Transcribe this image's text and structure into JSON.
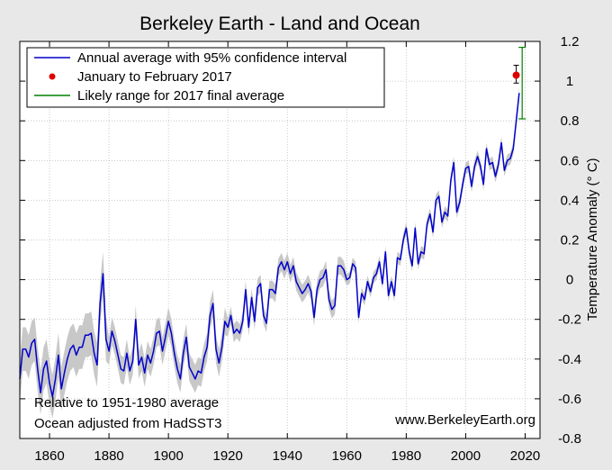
{
  "chart_data": {
    "type": "line",
    "title": "Berkeley Earth - Land and Ocean",
    "xlabel": "",
    "ylabel": "Temperature Anomaly (° C)",
    "xlim": [
      1850,
      2025
    ],
    "ylim": [
      -0.8,
      1.2
    ],
    "x_ticks": [
      1860,
      1880,
      1900,
      1920,
      1940,
      1960,
      1980,
      2000,
      2020
    ],
    "y_ticks": [
      -0.8,
      -0.6,
      -0.4,
      -0.2,
      0,
      0.2,
      0.4,
      0.6,
      0.8,
      1.0,
      1.2
    ],
    "y_tick_labels": [
      "-0.8",
      "-0.6",
      "-0.4",
      "-0.2",
      "0",
      "0.2",
      "0.4",
      "0.6",
      "0.8",
      "1",
      "1.2"
    ],
    "grid": true,
    "legend_position": "top-left",
    "legend": [
      {
        "label": "Annual average with 95% confidence interval",
        "color": "#0000cc",
        "marker": "line"
      },
      {
        "label": "January to February 2017",
        "color": "#dd0000",
        "marker": "dot"
      },
      {
        "label": "Likely range for 2017 final average",
        "color": "#008000",
        "marker": "line"
      }
    ],
    "annotations": [
      "Relative to 1951-1980 average",
      "Ocean adjusted from HadSST3"
    ],
    "source_text": "www.BerkeleyEarth.org",
    "series": [
      {
        "name": "Annual average",
        "color": "#0000cc",
        "years_start": 1850,
        "values": [
          -0.5,
          -0.35,
          -0.35,
          -0.39,
          -0.32,
          -0.3,
          -0.45,
          -0.57,
          -0.45,
          -0.41,
          -0.52,
          -0.59,
          -0.5,
          -0.38,
          -0.55,
          -0.47,
          -0.4,
          -0.35,
          -0.33,
          -0.38,
          -0.34,
          -0.34,
          -0.28,
          -0.28,
          -0.27,
          -0.37,
          -0.43,
          -0.12,
          0.03,
          -0.3,
          -0.36,
          -0.26,
          -0.31,
          -0.38,
          -0.45,
          -0.46,
          -0.37,
          -0.46,
          -0.41,
          -0.2,
          -0.43,
          -0.39,
          -0.47,
          -0.38,
          -0.42,
          -0.36,
          -0.27,
          -0.26,
          -0.36,
          -0.29,
          -0.21,
          -0.27,
          -0.37,
          -0.45,
          -0.5,
          -0.37,
          -0.29,
          -0.44,
          -0.47,
          -0.5,
          -0.46,
          -0.47,
          -0.39,
          -0.34,
          -0.18,
          -0.12,
          -0.35,
          -0.42,
          -0.34,
          -0.21,
          -0.24,
          -0.18,
          -0.27,
          -0.25,
          -0.27,
          -0.21,
          -0.05,
          -0.24,
          -0.09,
          -0.21,
          -0.04,
          -0.02,
          -0.18,
          -0.22,
          -0.05,
          -0.05,
          -0.07,
          0.06,
          0.09,
          0.05,
          0.09,
          0.03,
          0.07,
          -0.01,
          -0.04,
          -0.07,
          -0.05,
          -0.02,
          -0.06,
          -0.19,
          -0.05,
          0.0,
          0.01,
          0.05,
          -0.1,
          -0.15,
          -0.13,
          0.07,
          0.07,
          0.05,
          0.0,
          0.01,
          0.08,
          0.06,
          -0.19,
          -0.07,
          -0.1,
          -0.01,
          -0.06,
          0.01,
          0.03,
          0.09,
          -0.02,
          0.14,
          -0.08,
          -0.01,
          -0.08,
          0.11,
          0.1,
          0.2,
          0.26,
          0.14,
          0.07,
          0.26,
          0.08,
          0.14,
          0.13,
          0.28,
          0.33,
          0.24,
          0.4,
          0.42,
          0.29,
          0.34,
          0.32,
          0.5,
          0.59,
          0.34,
          0.39,
          0.48,
          0.56,
          0.57,
          0.47,
          0.57,
          0.62,
          0.57,
          0.48,
          0.66,
          0.58,
          0.59,
          0.52,
          0.58,
          0.69,
          0.55,
          0.6,
          0.61,
          0.66,
          0.8,
          0.94
        ]
      }
    ],
    "points": [
      {
        "name": "January to February 2017",
        "x": 2017,
        "y": 1.03,
        "err_low": 0.99,
        "err_high": 1.08
      }
    ],
    "ranges": [
      {
        "name": "Likely range for 2017 final average",
        "x": 2019,
        "low": 0.81,
        "high": 1.17
      }
    ]
  }
}
